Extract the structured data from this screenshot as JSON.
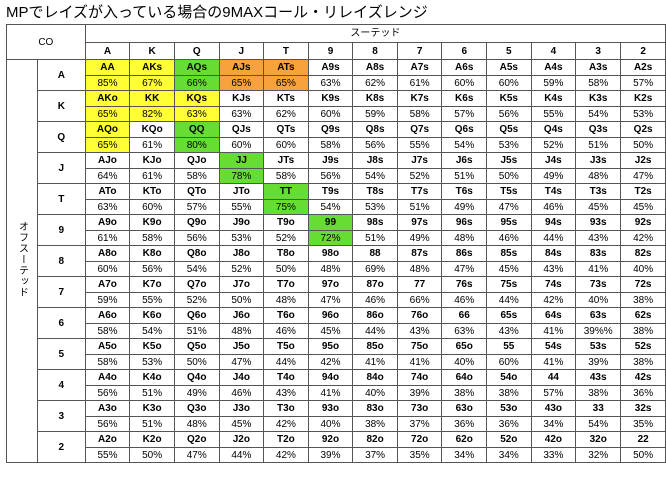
{
  "title": "MPでレイズが入っている場合の9MAXコール・リレイズレンジ",
  "position": "CO",
  "suited_label": "スーテッド",
  "offsuit_label": "オフスーテッド",
  "ranks": [
    "A",
    "K",
    "Q",
    "J",
    "T",
    "9",
    "8",
    "7",
    "6",
    "5",
    "4",
    "3",
    "2"
  ],
  "colors": {
    "yellow": "#FFFF33",
    "orange": "#F7A23A",
    "green": "#66DD33"
  },
  "rows": [
    {
      "rank": "A",
      "hands": [
        "AA",
        "AKs",
        "AQs",
        "AJs",
        "ATs",
        "A9s",
        "A8s",
        "A7s",
        "A6s",
        "A5s",
        "A4s",
        "A3s",
        "A2s"
      ],
      "pcts": [
        "85%",
        "67%",
        "66%",
        "65%",
        "65%",
        "63%",
        "62%",
        "61%",
        "60%",
        "60%",
        "59%",
        "58%",
        "57%"
      ],
      "colors": [
        "yellow",
        "yellow",
        "green",
        "orange",
        "orange",
        "",
        "",
        "",
        "",
        "",
        "",
        "",
        ""
      ]
    },
    {
      "rank": "K",
      "hands": [
        "AKo",
        "KK",
        "KQs",
        "KJs",
        "KTs",
        "K9s",
        "K8s",
        "K7s",
        "K6s",
        "K5s",
        "K4s",
        "K3s",
        "K2s"
      ],
      "pcts": [
        "65%",
        "82%",
        "63%",
        "63%",
        "62%",
        "60%",
        "59%",
        "58%",
        "57%",
        "56%",
        "55%",
        "54%",
        "53%"
      ],
      "colors": [
        "yellow",
        "yellow",
        "yellow",
        "",
        "",
        "",
        "",
        "",
        "",
        "",
        "",
        "",
        ""
      ]
    },
    {
      "rank": "Q",
      "hands": [
        "AQo",
        "KQo",
        "QQ",
        "QJs",
        "QTs",
        "Q9s",
        "Q8s",
        "Q7s",
        "Q6s",
        "Q5s",
        "Q4s",
        "Q3s",
        "Q2s"
      ],
      "pcts": [
        "65%",
        "61%",
        "80%",
        "60%",
        "60%",
        "58%",
        "56%",
        "55%",
        "54%",
        "53%",
        "52%",
        "51%",
        "50%"
      ],
      "colors": [
        "yellow",
        "",
        "green",
        "",
        "",
        "",
        "",
        "",
        "",
        "",
        "",
        "",
        ""
      ]
    },
    {
      "rank": "J",
      "hands": [
        "AJo",
        "KJo",
        "QJo",
        "JJ",
        "JTs",
        "J9s",
        "J8s",
        "J7s",
        "J6s",
        "J5s",
        "J4s",
        "J3s",
        "J2s"
      ],
      "pcts": [
        "64%",
        "61%",
        "58%",
        "78%",
        "58%",
        "56%",
        "54%",
        "52%",
        "51%",
        "50%",
        "49%",
        "48%",
        "47%"
      ],
      "colors": [
        "",
        "",
        "",
        "green",
        "",
        "",
        "",
        "",
        "",
        "",
        "",
        "",
        ""
      ]
    },
    {
      "rank": "T",
      "hands": [
        "ATo",
        "KTo",
        "QTo",
        "JTo",
        "TT",
        "T9s",
        "T8s",
        "T7s",
        "T6s",
        "T5s",
        "T4s",
        "T3s",
        "T2s"
      ],
      "pcts": [
        "63%",
        "60%",
        "57%",
        "55%",
        "75%",
        "54%",
        "53%",
        "51%",
        "49%",
        "47%",
        "46%",
        "45%",
        "45%"
      ],
      "colors": [
        "",
        "",
        "",
        "",
        "green",
        "",
        "",
        "",
        "",
        "",
        "",
        "",
        ""
      ]
    },
    {
      "rank": "9",
      "hands": [
        "A9o",
        "K9o",
        "Q9o",
        "J9o",
        "T9o",
        "99",
        "98s",
        "97s",
        "96s",
        "95s",
        "94s",
        "93s",
        "92s"
      ],
      "pcts": [
        "61%",
        "58%",
        "56%",
        "53%",
        "52%",
        "72%",
        "51%",
        "49%",
        "48%",
        "46%",
        "44%",
        "43%",
        "42%"
      ],
      "colors": [
        "",
        "",
        "",
        "",
        "",
        "green",
        "",
        "",
        "",
        "",
        "",
        "",
        ""
      ]
    },
    {
      "rank": "8",
      "hands": [
        "A8o",
        "K8o",
        "Q8o",
        "J8o",
        "T8o",
        "98o",
        "88",
        "87s",
        "86s",
        "85s",
        "84s",
        "83s",
        "82s"
      ],
      "pcts": [
        "60%",
        "56%",
        "54%",
        "52%",
        "50%",
        "48%",
        "69%",
        "48%",
        "47%",
        "45%",
        "43%",
        "41%",
        "40%"
      ],
      "colors": [
        "",
        "",
        "",
        "",
        "",
        "",
        "",
        "",
        "",
        "",
        "",
        "",
        ""
      ]
    },
    {
      "rank": "7",
      "hands": [
        "A7o",
        "K7o",
        "Q7o",
        "J7o",
        "T7o",
        "97o",
        "87o",
        "77",
        "76s",
        "75s",
        "74s",
        "73s",
        "72s"
      ],
      "pcts": [
        "59%",
        "55%",
        "52%",
        "50%",
        "48%",
        "47%",
        "46%",
        "66%",
        "46%",
        "44%",
        "42%",
        "40%",
        "38%"
      ],
      "colors": [
        "",
        "",
        "",
        "",
        "",
        "",
        "",
        "",
        "",
        "",
        "",
        "",
        ""
      ]
    },
    {
      "rank": "6",
      "hands": [
        "A6o",
        "K6o",
        "Q6o",
        "J6o",
        "T6o",
        "96o",
        "86o",
        "76o",
        "66",
        "65s",
        "64s",
        "63s",
        "62s"
      ],
      "pcts": [
        "58%",
        "54%",
        "51%",
        "48%",
        "46%",
        "45%",
        "44%",
        "43%",
        "63%",
        "43%",
        "41%",
        "39%%",
        "38%"
      ],
      "colors": [
        "",
        "",
        "",
        "",
        "",
        "",
        "",
        "",
        "",
        "",
        "",
        "",
        ""
      ]
    },
    {
      "rank": "5",
      "hands": [
        "A5o",
        "K5o",
        "Q5o",
        "J5o",
        "T5o",
        "95o",
        "85o",
        "75o",
        "65o",
        "55",
        "54s",
        "53s",
        "52s"
      ],
      "pcts": [
        "58%",
        "53%",
        "50%",
        "47%",
        "44%",
        "42%",
        "41%",
        "41%",
        "40%",
        "60%",
        "41%",
        "39%",
        "38%"
      ],
      "colors": [
        "",
        "",
        "",
        "",
        "",
        "",
        "",
        "",
        "",
        "",
        "",
        "",
        ""
      ]
    },
    {
      "rank": "4",
      "hands": [
        "A4o",
        "K4o",
        "Q4o",
        "J4o",
        "T4o",
        "94o",
        "84o",
        "74o",
        "64o",
        "54o",
        "44",
        "43s",
        "42s"
      ],
      "pcts": [
        "56%",
        "51%",
        "49%",
        "46%",
        "43%",
        "41%",
        "40%",
        "39%",
        "38%",
        "38%",
        "57%",
        "38%",
        "36%"
      ],
      "colors": [
        "",
        "",
        "",
        "",
        "",
        "",
        "",
        "",
        "",
        "",
        "",
        "",
        ""
      ]
    },
    {
      "rank": "3",
      "hands": [
        "A3o",
        "K3o",
        "Q3o",
        "J3o",
        "T3o",
        "93o",
        "83o",
        "73o",
        "63o",
        "53o",
        "43o",
        "33",
        "32s"
      ],
      "pcts": [
        "56%",
        "51%",
        "48%",
        "45%",
        "42%",
        "40%",
        "38%",
        "37%",
        "36%",
        "36%",
        "34%",
        "54%",
        "35%"
      ],
      "colors": [
        "",
        "",
        "",
        "",
        "",
        "",
        "",
        "",
        "",
        "",
        "",
        "",
        ""
      ]
    },
    {
      "rank": "2",
      "hands": [
        "A2o",
        "K2o",
        "Q2o",
        "J2o",
        "T2o",
        "92o",
        "82o",
        "72o",
        "62o",
        "52o",
        "42o",
        "32o",
        "22"
      ],
      "pcts": [
        "55%",
        "50%",
        "47%",
        "44%",
        "42%",
        "39%",
        "37%",
        "35%",
        "34%",
        "34%",
        "33%",
        "32%",
        "50%"
      ],
      "colors": [
        "",
        "",
        "",
        "",
        "",
        "",
        "",
        "",
        "",
        "",
        "",
        "",
        ""
      ]
    }
  ]
}
